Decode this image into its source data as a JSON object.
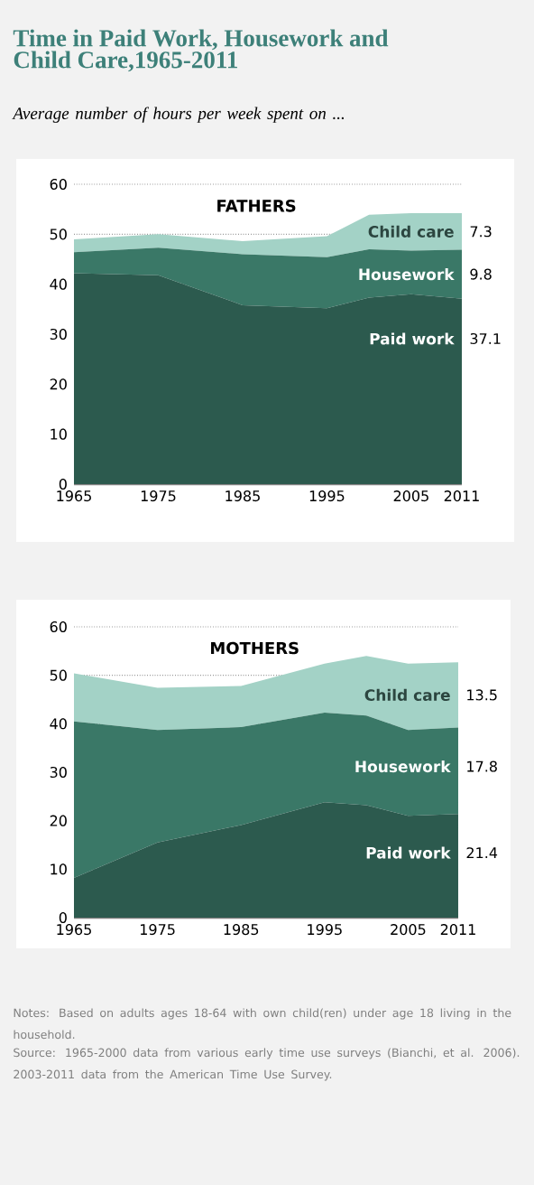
{
  "chart_data": [
    {
      "type": "area",
      "title": "FATHERS",
      "stacked": true,
      "grid": "y",
      "annotations": [
        "Time in Paid Work, Housework and Child Care,1965-2011",
        "*Average number of hours per week spent on ...*"
      ],
      "x": [
        1965,
        1975,
        1985,
        1995,
        2000,
        2005,
        2011
      ],
      "xlim": [
        1965,
        2011
      ],
      "xticks": [
        1965,
        1975,
        1985,
        1995,
        2005,
        2011
      ],
      "ylim": [
        0,
        60
      ],
      "yticks": [
        0,
        10,
        20,
        30,
        40,
        50,
        60
      ],
      "series": [
        {
          "name": "Paid work",
          "color": "#2c5a4e",
          "values": [
            42.2,
            41.8,
            35.8,
            35.2,
            37.3,
            38.0,
            37.1
          ],
          "value_labels": [
            null,
            null,
            null,
            null,
            null,
            null,
            "37.1"
          ]
        },
        {
          "name": "Housework",
          "color": "#3a7867",
          "values": [
            4.2,
            5.5,
            10.2,
            10.2,
            9.7,
            8.7,
            9.8
          ],
          "value_labels": [
            null,
            null,
            null,
            null,
            null,
            null,
            "9.8"
          ]
        },
        {
          "name": "Child care",
          "color": "#a3d2c6",
          "values": [
            2.6,
            2.7,
            2.6,
            4.2,
            6.9,
            7.5,
            7.3
          ],
          "value_labels": [
            null,
            null,
            null,
            null,
            null,
            null,
            "7.3"
          ]
        }
      ]
    },
    {
      "type": "area",
      "title": "MOTHERS",
      "stacked": true,
      "grid": "y",
      "annotations": [
        "Notes: Based on adults ages 18-64 with own child(ren) under age 18 living in the household.",
        "Source: 1965-2000 data from various early time use surveys (Bianchi, et al. 2006). 2003-2011 data from the American Time Use Survey."
      ],
      "x": [
        1965,
        1975,
        1985,
        1995,
        2000,
        2005,
        2011
      ],
      "xlim": [
        1965,
        2011
      ],
      "xticks": [
        1965,
        1975,
        1985,
        1995,
        2005,
        2011
      ],
      "ylim": [
        0,
        60
      ],
      "yticks": [
        0,
        10,
        20,
        30,
        40,
        50,
        60
      ],
      "series": [
        {
          "name": "Paid work",
          "color": "#2c5a4e",
          "values": [
            8.2,
            15.5,
            19.1,
            23.8,
            23.2,
            21.0,
            21.4
          ],
          "value_labels": [
            null,
            null,
            null,
            null,
            null,
            null,
            "21.4"
          ]
        },
        {
          "name": "Housework",
          "color": "#3a7867",
          "values": [
            32.3,
            23.2,
            20.2,
            18.5,
            18.5,
            17.7,
            17.8
          ],
          "value_labels": [
            null,
            null,
            null,
            null,
            null,
            null,
            "17.8"
          ]
        },
        {
          "name": "Child care",
          "color": "#a3d2c6",
          "values": [
            9.9,
            8.7,
            8.5,
            10.1,
            12.3,
            13.7,
            13.5
          ],
          "value_labels": [
            null,
            null,
            null,
            null,
            null,
            null,
            "13.5"
          ]
        }
      ]
    }
  ]
}
